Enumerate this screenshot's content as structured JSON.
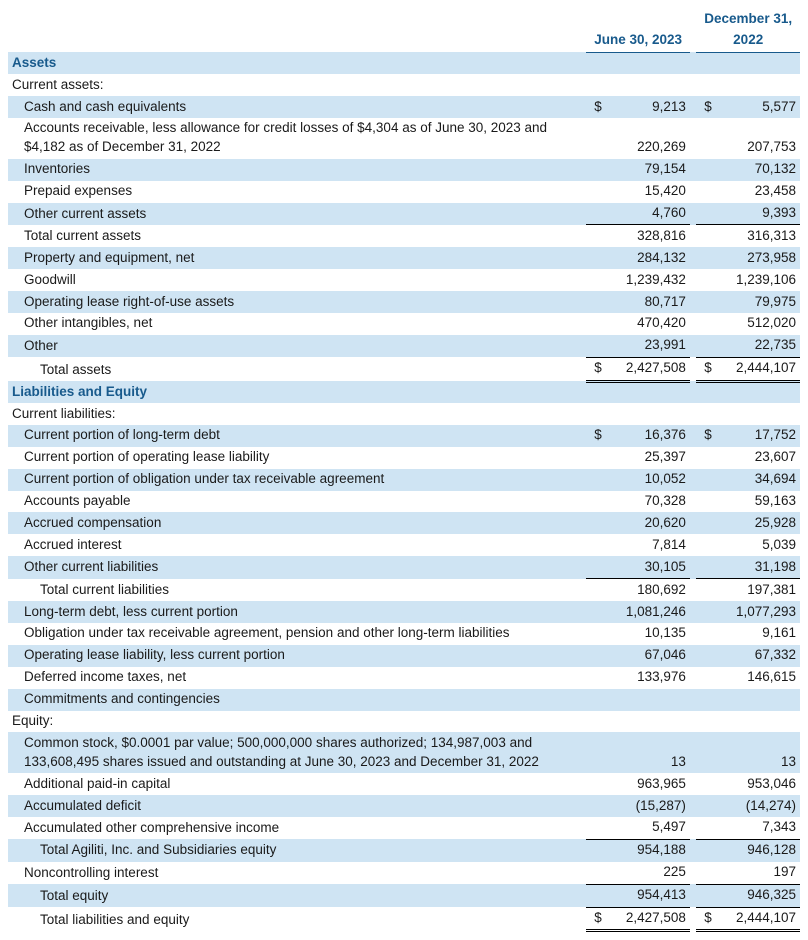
{
  "columns": {
    "left": "June 30, 2023",
    "right_top": "December 31,",
    "right_bot": "2022"
  },
  "rows": [
    {
      "t": "section",
      "label": "Assets",
      "shade": true
    },
    {
      "t": "plain",
      "label": "Current assets:"
    },
    {
      "t": "line",
      "ind": 1,
      "shade": true,
      "label": "Cash and cash equivalents",
      "sym": "$",
      "v1": "9,213",
      "v2": "5,577"
    },
    {
      "t": "line",
      "ind": 1,
      "shade": false,
      "label": "Accounts receivable, less allowance for credit losses of $4,304 as of June 30, 2023 and $4,182 as of December 31, 2022",
      "v1": "220,269",
      "v2": "207,753"
    },
    {
      "t": "line",
      "ind": 1,
      "shade": true,
      "label": "Inventories",
      "v1": "79,154",
      "v2": "70,132"
    },
    {
      "t": "line",
      "ind": 1,
      "shade": false,
      "label": "Prepaid expenses",
      "v1": "15,420",
      "v2": "23,458"
    },
    {
      "t": "line",
      "ind": 1,
      "shade": true,
      "label": "Other current assets",
      "v1": "4,760",
      "v2": "9,393"
    },
    {
      "t": "line",
      "ind": 1,
      "shade": false,
      "label": "Total current assets",
      "v1": "328,816",
      "v2": "316,313",
      "border": "subtotal"
    },
    {
      "t": "line",
      "ind": 1,
      "shade": true,
      "label": "Property and equipment, net",
      "v1": "284,132",
      "v2": "273,958"
    },
    {
      "t": "line",
      "ind": 1,
      "shade": false,
      "label": "Goodwill",
      "v1": "1,239,432",
      "v2": "1,239,106"
    },
    {
      "t": "line",
      "ind": 1,
      "shade": true,
      "label": "Operating lease right-of-use assets",
      "v1": "80,717",
      "v2": "79,975"
    },
    {
      "t": "line",
      "ind": 1,
      "shade": false,
      "label": "Other intangibles, net",
      "v1": "470,420",
      "v2": "512,020"
    },
    {
      "t": "line",
      "ind": 1,
      "shade": true,
      "label": "Other",
      "v1": "23,991",
      "v2": "22,735"
    },
    {
      "t": "line",
      "ind": 2,
      "shade": false,
      "label": "Total assets",
      "sym": "$",
      "v1": "2,427,508",
      "v2": "2,444,107",
      "border": "grand"
    },
    {
      "t": "section",
      "label": "Liabilities and Equity",
      "shade": true
    },
    {
      "t": "plain",
      "label": "Current liabilities:"
    },
    {
      "t": "line",
      "ind": 1,
      "shade": true,
      "label": "Current portion of long-term debt",
      "sym": "$",
      "v1": "16,376",
      "v2": "17,752"
    },
    {
      "t": "line",
      "ind": 1,
      "shade": false,
      "label": "Current portion of operating lease liability",
      "v1": "25,397",
      "v2": "23,607"
    },
    {
      "t": "line",
      "ind": 1,
      "shade": true,
      "label": "Current portion of obligation under tax receivable agreement",
      "v1": "10,052",
      "v2": "34,694"
    },
    {
      "t": "line",
      "ind": 1,
      "shade": false,
      "label": "Accounts payable",
      "v1": "70,328",
      "v2": "59,163"
    },
    {
      "t": "line",
      "ind": 1,
      "shade": true,
      "label": "Accrued compensation",
      "v1": "20,620",
      "v2": "25,928"
    },
    {
      "t": "line",
      "ind": 1,
      "shade": false,
      "label": "Accrued interest",
      "v1": "7,814",
      "v2": "5,039"
    },
    {
      "t": "line",
      "ind": 1,
      "shade": true,
      "label": "Other current liabilities",
      "v1": "30,105",
      "v2": "31,198"
    },
    {
      "t": "line",
      "ind": 2,
      "shade": false,
      "label": "Total current liabilities",
      "v1": "180,692",
      "v2": "197,381",
      "border": "subtotal"
    },
    {
      "t": "line",
      "ind": 1,
      "shade": true,
      "label": "Long-term debt, less current portion",
      "v1": "1,081,246",
      "v2": "1,077,293"
    },
    {
      "t": "line",
      "ind": 1,
      "shade": false,
      "label": "Obligation under tax receivable agreement, pension and other long-term liabilities",
      "v1": "10,135",
      "v2": "9,161"
    },
    {
      "t": "line",
      "ind": 1,
      "shade": true,
      "label": "Operating lease liability, less current portion",
      "v1": "67,046",
      "v2": "67,332"
    },
    {
      "t": "line",
      "ind": 1,
      "shade": false,
      "label": "Deferred income taxes, net",
      "v1": "133,976",
      "v2": "146,615"
    },
    {
      "t": "line",
      "ind": 1,
      "shade": true,
      "label": "Commitments and contingencies",
      "v1": "",
      "v2": ""
    },
    {
      "t": "plain",
      "label": "Equity:"
    },
    {
      "t": "line",
      "ind": 1,
      "shade": true,
      "label": "Common stock, $0.0001 par value; 500,000,000 shares authorized; 134,987,003 and 133,608,495 shares issued and outstanding at June 30, 2023 and December 31, 2022",
      "v1": "13",
      "v2": "13"
    },
    {
      "t": "line",
      "ind": 1,
      "shade": false,
      "label": "Additional paid-in capital",
      "v1": "963,965",
      "v2": "953,046"
    },
    {
      "t": "line",
      "ind": 1,
      "shade": true,
      "label": "Accumulated deficit",
      "v1": "(15,287)",
      "v2": "(14,274)"
    },
    {
      "t": "line",
      "ind": 1,
      "shade": false,
      "label": "Accumulated other comprehensive income",
      "v1": "5,497",
      "v2": "7,343"
    },
    {
      "t": "line",
      "ind": 2,
      "shade": true,
      "label": "Total Agiliti, Inc. and Subsidiaries equity",
      "v1": "954,188",
      "v2": "946,128",
      "border": "subtotal"
    },
    {
      "t": "line",
      "ind": 1,
      "shade": false,
      "label": "Noncontrolling interest",
      "v1": "225",
      "v2": "197"
    },
    {
      "t": "line",
      "ind": 2,
      "shade": true,
      "label": "Total equity",
      "v1": "954,413",
      "v2": "946,325",
      "border": "subtotal"
    },
    {
      "t": "line",
      "ind": 2,
      "shade": false,
      "label": "Total liabilities and equity",
      "sym": "$",
      "v1": "2,427,508",
      "v2": "2,444,107",
      "border": "grand"
    }
  ]
}
